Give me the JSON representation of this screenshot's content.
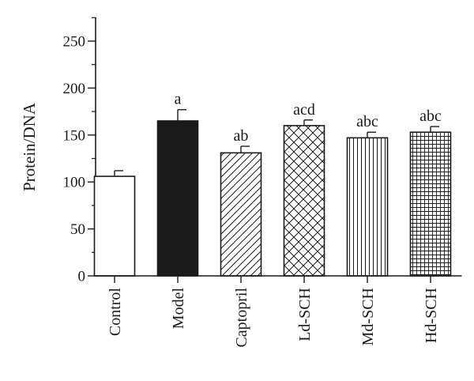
{
  "chart_data": {
    "type": "bar",
    "title": "",
    "xlabel": "",
    "ylabel": "Protein/DNA",
    "ylim": [
      0,
      250
    ],
    "yticks": [
      0,
      50,
      100,
      150,
      200,
      250
    ],
    "grid": false,
    "categories": [
      "Control",
      "Model",
      "Captopril",
      "Ld-SCH",
      "Md-SCH",
      "Hd-SCH"
    ],
    "values": [
      106,
      165,
      131,
      160,
      147,
      153
    ],
    "errors": [
      6,
      12,
      7,
      6,
      6,
      6
    ],
    "significance": [
      "",
      "a",
      "ab",
      "acd",
      "abc",
      "abc"
    ],
    "fills": [
      "white",
      "solid-black",
      "diagonal-hatch",
      "cross-hatch",
      "vertical-lines",
      "grid"
    ],
    "colors": {
      "ink": "#1a1a1a",
      "background": "#ffffff"
    }
  }
}
